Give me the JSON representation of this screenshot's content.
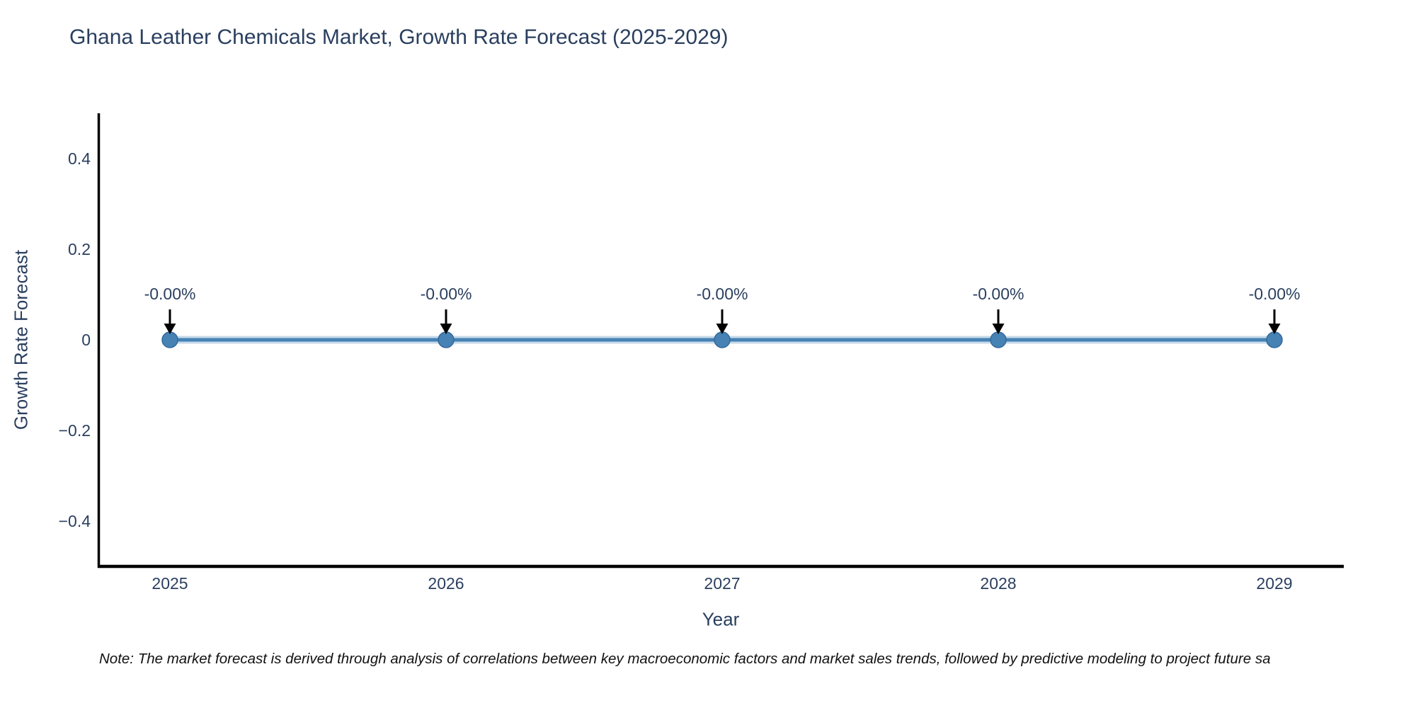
{
  "chart_data": {
    "type": "line",
    "title": "Ghana Leather Chemicals Market, Growth Rate Forecast (2025-2029)",
    "xlabel": "Year",
    "ylabel": "Growth Rate Forecast",
    "categories": [
      "2025",
      "2026",
      "2027",
      "2028",
      "2029"
    ],
    "series": [
      {
        "name": "Growth Rate Forecast",
        "values": [
          0,
          0,
          0,
          0,
          0
        ]
      }
    ],
    "point_labels": [
      "-0.00%",
      "-0.00%",
      "-0.00%",
      "-0.00%",
      "-0.00%"
    ],
    "yticks": [
      0.4,
      0.2,
      0,
      -0.2,
      -0.4
    ],
    "ytick_labels": [
      "0.4",
      "0.2",
      "0",
      "−0.2",
      "−0.4"
    ],
    "ylim": [
      -0.5,
      0.5
    ],
    "grid": false,
    "legend_position": "none",
    "note": "Note: The market forecast is derived through analysis of correlations between key macroeconomic factors and market sales trends, followed by predictive modeling to project future sa",
    "colors": {
      "line": "#4682b4",
      "line_halo": "rgba(70,130,180,0.30)",
      "marker": "#4682b4",
      "marker_edge": "#35689b",
      "arrow": "#000000",
      "text": "#2a3f5f",
      "axis": "#000000",
      "note_text": "#111111"
    }
  }
}
